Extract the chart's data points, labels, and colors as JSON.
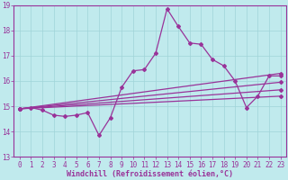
{
  "xlabel": "Windchill (Refroidissement éolien,°C)",
  "xlim": [
    -0.5,
    23.5
  ],
  "ylim": [
    13,
    19
  ],
  "yticks": [
    13,
    14,
    15,
    16,
    17,
    18,
    19
  ],
  "xticks": [
    0,
    1,
    2,
    3,
    4,
    5,
    6,
    7,
    8,
    9,
    10,
    11,
    12,
    13,
    14,
    15,
    16,
    17,
    18,
    19,
    20,
    21,
    22,
    23
  ],
  "bg_color": "#c0eaed",
  "grid_color": "#a0d4d8",
  "line_color": "#993399",
  "marker": "D",
  "markersize": 2.0,
  "linewidth": 0.9,
  "main_x": [
    0,
    1,
    2,
    3,
    4,
    5,
    6,
    7,
    8,
    9,
    10,
    11,
    12,
    13,
    14,
    15,
    16,
    17,
    18,
    19,
    20,
    21,
    22,
    23
  ],
  "main_y": [
    14.9,
    14.95,
    14.85,
    14.65,
    14.6,
    14.65,
    14.75,
    13.85,
    14.55,
    15.75,
    16.4,
    16.45,
    17.1,
    18.85,
    18.15,
    17.5,
    17.45,
    16.85,
    16.6,
    16.0,
    14.95,
    15.4,
    16.2,
    16.2
  ],
  "trend_lines": [
    {
      "x": [
        0,
        23
      ],
      "y": [
        14.9,
        16.3
      ]
    },
    {
      "x": [
        0,
        23
      ],
      "y": [
        14.9,
        15.95
      ]
    },
    {
      "x": [
        0,
        23
      ],
      "y": [
        14.9,
        15.65
      ]
    },
    {
      "x": [
        0,
        23
      ],
      "y": [
        14.9,
        15.4
      ]
    }
  ],
  "tick_fontsize": 5.5,
  "label_fontsize": 6.0
}
